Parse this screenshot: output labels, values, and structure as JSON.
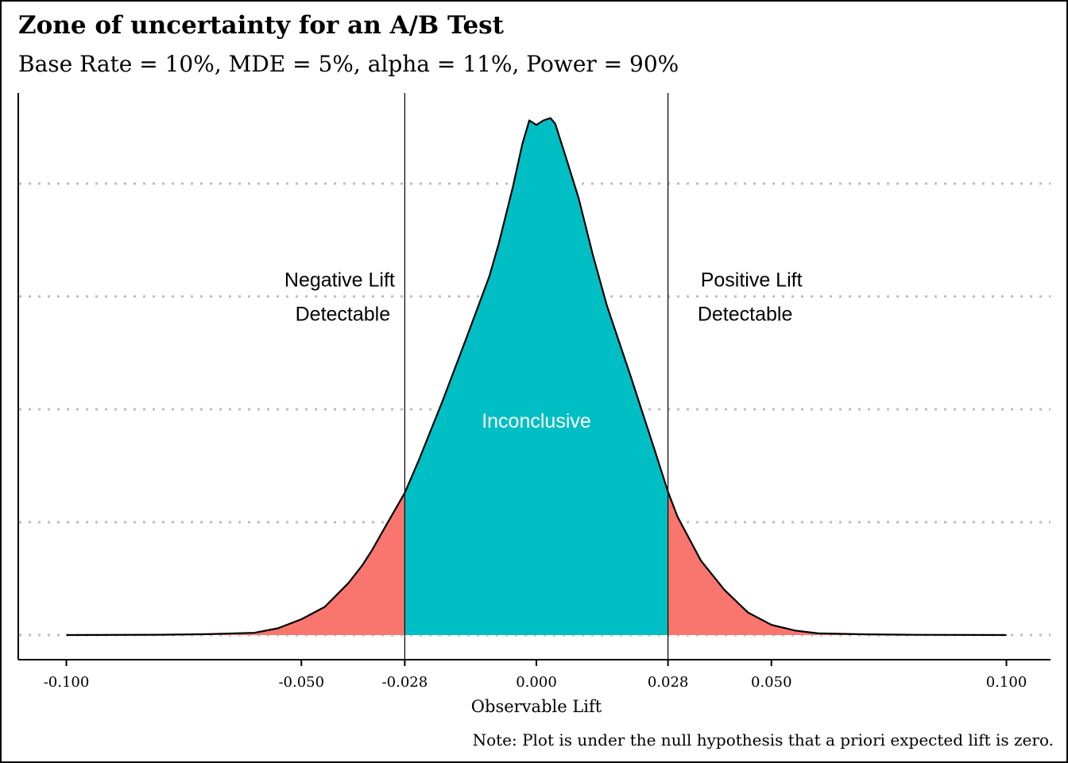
{
  "chart_data": {
    "type": "area",
    "title": "Zone of uncertainty for an A/B Test",
    "subtitle": "Base Rate = 10%, MDE = 5%, alpha = 11%, Power = 90%",
    "xlabel": "Observable Lift",
    "ylabel": "",
    "caption": "Note: Plot is under the null hypothesis that a priori expected lift is zero.",
    "xlim": [
      -0.1,
      0.1
    ],
    "ylim": [
      0,
      4.6
    ],
    "x_ticks": [
      {
        "value": -0.1,
        "label": "-0.100"
      },
      {
        "value": -0.05,
        "label": "-0.050"
      },
      {
        "value": -0.028,
        "label": "-0.028"
      },
      {
        "value": 0.0,
        "label": "0.000"
      },
      {
        "value": 0.028,
        "label": "0.028"
      },
      {
        "value": 0.05,
        "label": "0.050"
      },
      {
        "value": 0.1,
        "label": "0.100"
      }
    ],
    "y_gridlines": [
      0,
      1,
      2,
      3,
      4
    ],
    "y_tick_labels_shown": false,
    "grid": "horizontal-dotted",
    "thresholds": [
      -0.028,
      0.028
    ],
    "regions": [
      {
        "name": "Negative Lift Detectable",
        "from": -0.1,
        "to": -0.028,
        "color": "#F8766D"
      },
      {
        "name": "Inconclusive",
        "from": -0.028,
        "to": 0.028,
        "color": "#00BFC4"
      },
      {
        "name": "Positive Lift Detectable",
        "from": 0.028,
        "to": 0.1,
        "color": "#F8766D"
      }
    ],
    "annotations": [
      {
        "id": "neg",
        "lines": [
          "Negative Lift",
          "Detectable"
        ],
        "x": -0.028,
        "y": 3.0,
        "anchor": "end",
        "color": "#000000"
      },
      {
        "id": "pos",
        "lines": [
          "Positive Lift",
          "Detectable"
        ],
        "x": 0.028,
        "y": 3.0,
        "anchor": "start",
        "color": "#000000"
      },
      {
        "id": "mid",
        "lines": [
          "Inconclusive"
        ],
        "x": 0.0,
        "y": 1.9,
        "anchor": "middle",
        "color": "#ffffff"
      }
    ],
    "density_units": "relative density (gridline units)",
    "density": {
      "x": [
        -0.1,
        -0.08,
        -0.07,
        -0.06,
        -0.055,
        -0.05,
        -0.045,
        -0.04,
        -0.037,
        -0.035,
        -0.032,
        -0.028,
        -0.025,
        -0.02,
        -0.015,
        -0.01,
        -0.008,
        -0.005,
        -0.003,
        -0.0015,
        0.0,
        0.0015,
        0.003,
        0.004,
        0.006,
        0.009,
        0.012,
        0.015,
        0.02,
        0.025,
        0.028,
        0.03,
        0.035,
        0.04,
        0.045,
        0.05,
        0.055,
        0.06,
        0.07,
        0.08,
        0.1
      ],
      "y": [
        0.0,
        0.003,
        0.008,
        0.02,
        0.06,
        0.14,
        0.25,
        0.46,
        0.62,
        0.75,
        0.97,
        1.26,
        1.55,
        2.07,
        2.62,
        3.18,
        3.47,
        3.97,
        4.35,
        4.56,
        4.52,
        4.56,
        4.58,
        4.53,
        4.27,
        3.87,
        3.37,
        2.92,
        2.3,
        1.66,
        1.27,
        1.05,
        0.66,
        0.4,
        0.2,
        0.09,
        0.04,
        0.015,
        0.006,
        0.002,
        0.0
      ]
    }
  },
  "colors": {
    "tail": "#F8766D",
    "center": "#00BFC4",
    "grid": "#BDBDBD",
    "outline": "#000000"
  }
}
